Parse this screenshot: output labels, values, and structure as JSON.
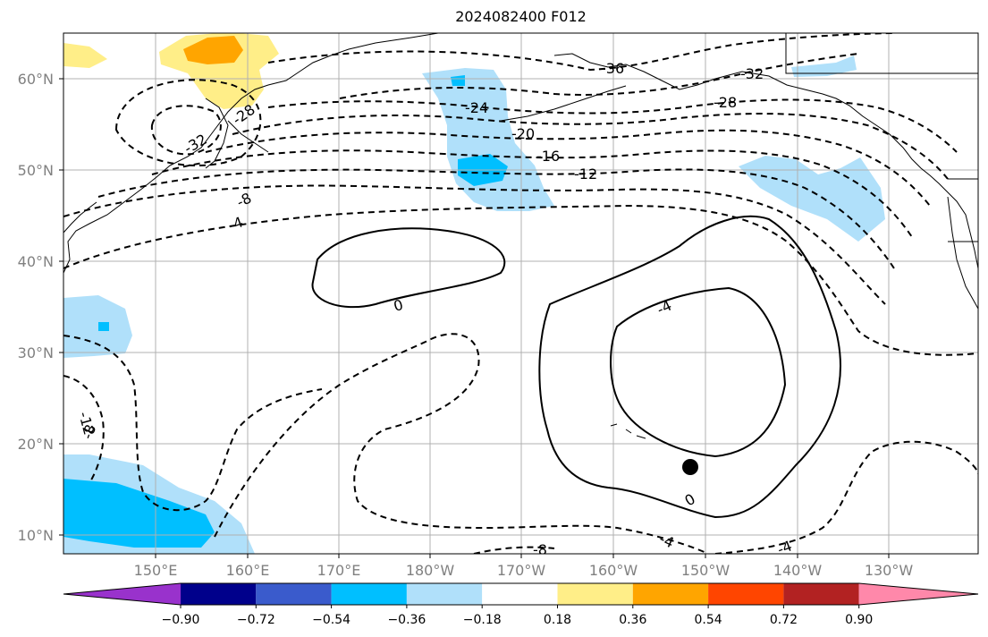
{
  "title": "2024082400 F012",
  "latitude_labels": [
    "60°N",
    "50°N",
    "40°N",
    "30°N",
    "20°N",
    "10°N"
  ],
  "longitude_labels": [
    "150°E",
    "160°E",
    "170°E",
    "180°W",
    "170°W",
    "160°W",
    "150°W",
    "140°W",
    "130°W"
  ],
  "colorbar": {
    "ticks": [
      "−0.90",
      "−0.72",
      "−0.54",
      "−0.36",
      "−0.18",
      "0.18",
      "0.36",
      "0.54",
      "0.72",
      "0.90"
    ],
    "colors": [
      "#9932cc",
      "#00008b",
      "#3a5bcc",
      "#00bfff",
      "#b0e0fa",
      "#ffffff",
      "#ffee88",
      "#ffa500",
      "#ff4500",
      "#b22222",
      "#ff88aa"
    ]
  },
  "contour_labels": [
    "-36",
    "-32",
    "-28",
    "-32",
    "-28",
    "-24",
    "-20",
    "-16",
    "-12",
    "-8",
    "-4",
    "0",
    "-4",
    "0",
    "-12",
    "-8",
    "-4",
    "-8",
    "-4"
  ],
  "marker": "storm-position-dot"
}
